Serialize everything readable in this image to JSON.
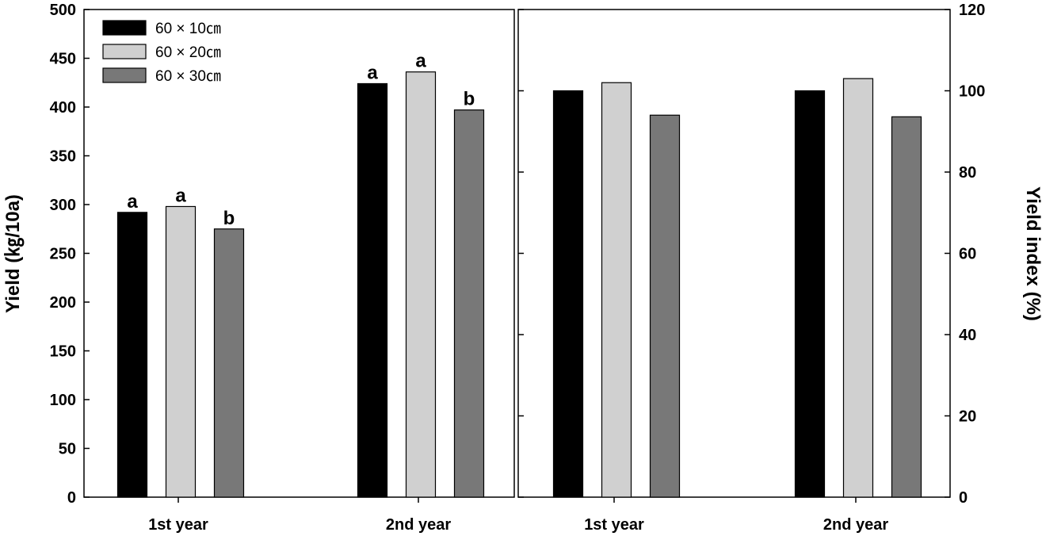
{
  "chart_data": [
    {
      "type": "bar",
      "categories": [
        "1st year",
        "2nd year"
      ],
      "ylabel": "Yield (㎏/10a)",
      "ylim": [
        0,
        500
      ],
      "yticks": [
        0,
        50,
        100,
        150,
        200,
        250,
        300,
        350,
        400,
        450,
        500
      ],
      "legend_position": "top-left",
      "series": [
        {
          "name": "60 × 10㎝",
          "color": "#000000",
          "values": [
            292,
            424
          ],
          "labels": [
            "a",
            "a"
          ]
        },
        {
          "name": "60 × 20㎝",
          "color": "#d0d0d0",
          "values": [
            298,
            436
          ],
          "labels": [
            "a",
            "a"
          ]
        },
        {
          "name": "60 × 30㎝",
          "color": "#787878",
          "values": [
            275,
            397
          ],
          "labels": [
            "b",
            "b"
          ]
        }
      ]
    },
    {
      "type": "bar",
      "categories": [
        "1st year",
        "2nd year"
      ],
      "ylabel": "Yield index (%)",
      "ylim": [
        0,
        120
      ],
      "yticks": [
        0,
        20,
        40,
        60,
        80,
        100,
        120
      ],
      "y_axis_side": "right",
      "series": [
        {
          "color": "#000000",
          "values": [
            100,
            100
          ]
        },
        {
          "color": "#d0d0d0",
          "values": [
            102,
            103
          ]
        },
        {
          "color": "#787878",
          "values": [
            94,
            93.6
          ]
        }
      ]
    }
  ]
}
